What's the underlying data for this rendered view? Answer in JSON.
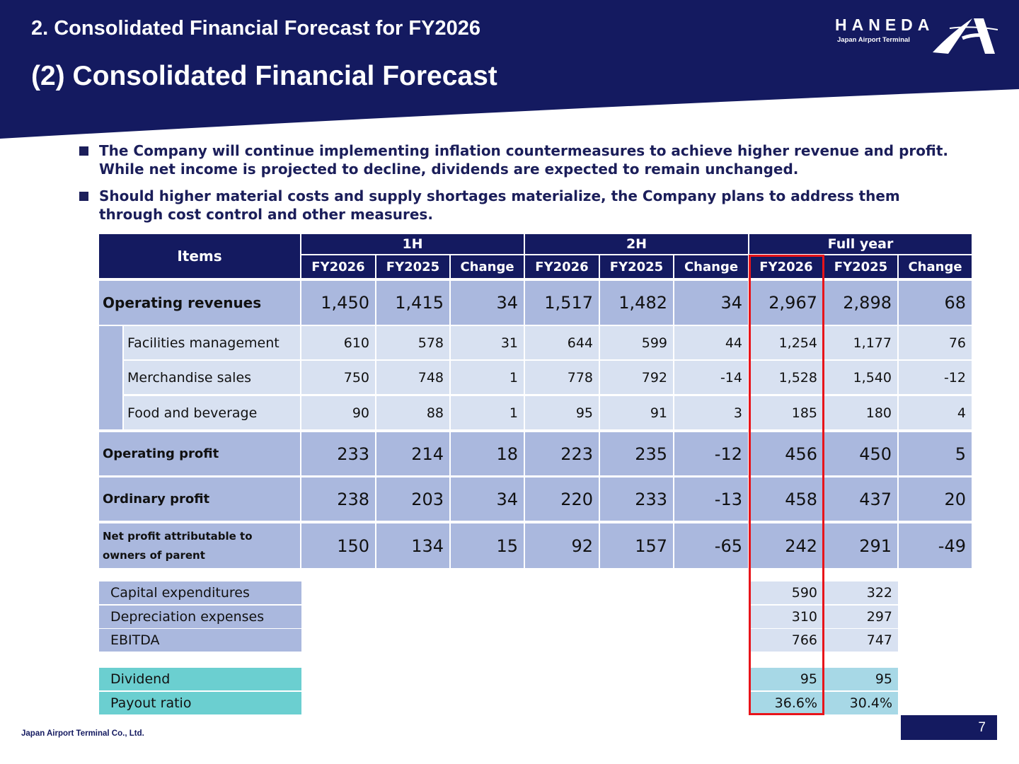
{
  "header": {
    "section_title": "2. Consolidated Financial Forecast for FY2026",
    "page_title": "(2) Consolidated Financial Forecast",
    "logo": {
      "wordmark": "HANEDA",
      "subtitle": "Japan Airport Terminal"
    },
    "colors": {
      "navy": "#141a60",
      "highlight_red": "#e8141a"
    }
  },
  "bullets": [
    "The Company will continue implementing inflation countermeasures to achieve higher revenue and profit.\nWhile net income is projected to decline, dividends are expected to remain unchanged.",
    "Should higher material costs and supply shortages materialize, the Company plans to address them\nthrough cost control and other measures."
  ],
  "table": {
    "items_header": "Items",
    "groups": [
      "1H",
      "2H",
      "Full year"
    ],
    "subheaders": [
      "FY2026",
      "FY2025",
      "Change",
      "FY2026",
      "FY2025",
      "Change",
      "FY2026",
      "FY2025",
      "Change"
    ],
    "rows": [
      {
        "label": "Operating revenues",
        "values": [
          "1,450",
          "1,415",
          "34",
          "1,517",
          "1,482",
          "34",
          "2,967",
          "2,898",
          "68"
        ]
      },
      {
        "label": "Facilities management",
        "values": [
          "610",
          "578",
          "31",
          "644",
          "599",
          "44",
          "1,254",
          "1,177",
          "76"
        ]
      },
      {
        "label": "Merchandise sales",
        "values": [
          "750",
          "748",
          "1",
          "778",
          "792",
          "-14",
          "1,528",
          "1,540",
          "-12"
        ]
      },
      {
        "label": "Food and beverage",
        "values": [
          "90",
          "88",
          "1",
          "95",
          "91",
          "3",
          "185",
          "180",
          "4"
        ]
      },
      {
        "label": "Operating profit",
        "values": [
          "233",
          "214",
          "18",
          "223",
          "235",
          "-12",
          "456",
          "450",
          "5"
        ]
      },
      {
        "label": "Ordinary profit",
        "values": [
          "238",
          "203",
          "34",
          "220",
          "233",
          "-13",
          "458",
          "437",
          "20"
        ]
      },
      {
        "label": "Net profit attributable to\nowners of parent",
        "values": [
          "150",
          "134",
          "15",
          "92",
          "157",
          "-65",
          "242",
          "291",
          "-49"
        ]
      }
    ],
    "capex_rows": [
      {
        "label": "Capital expenditures",
        "fy2026": "590",
        "fy2025": "322"
      },
      {
        "label": "Depreciation expenses",
        "fy2026": "310",
        "fy2025": "297"
      },
      {
        "label": "EBITDA",
        "fy2026": "766",
        "fy2025": "747"
      }
    ],
    "dividend_rows": [
      {
        "label": "Dividend",
        "fy2026": "95",
        "fy2025": "95"
      },
      {
        "label": "Payout ratio",
        "fy2026": "36.6%",
        "fy2025": "30.4%"
      }
    ]
  },
  "footer": {
    "company": "Japan Airport Terminal Co., Ltd.",
    "page_number": "7"
  }
}
